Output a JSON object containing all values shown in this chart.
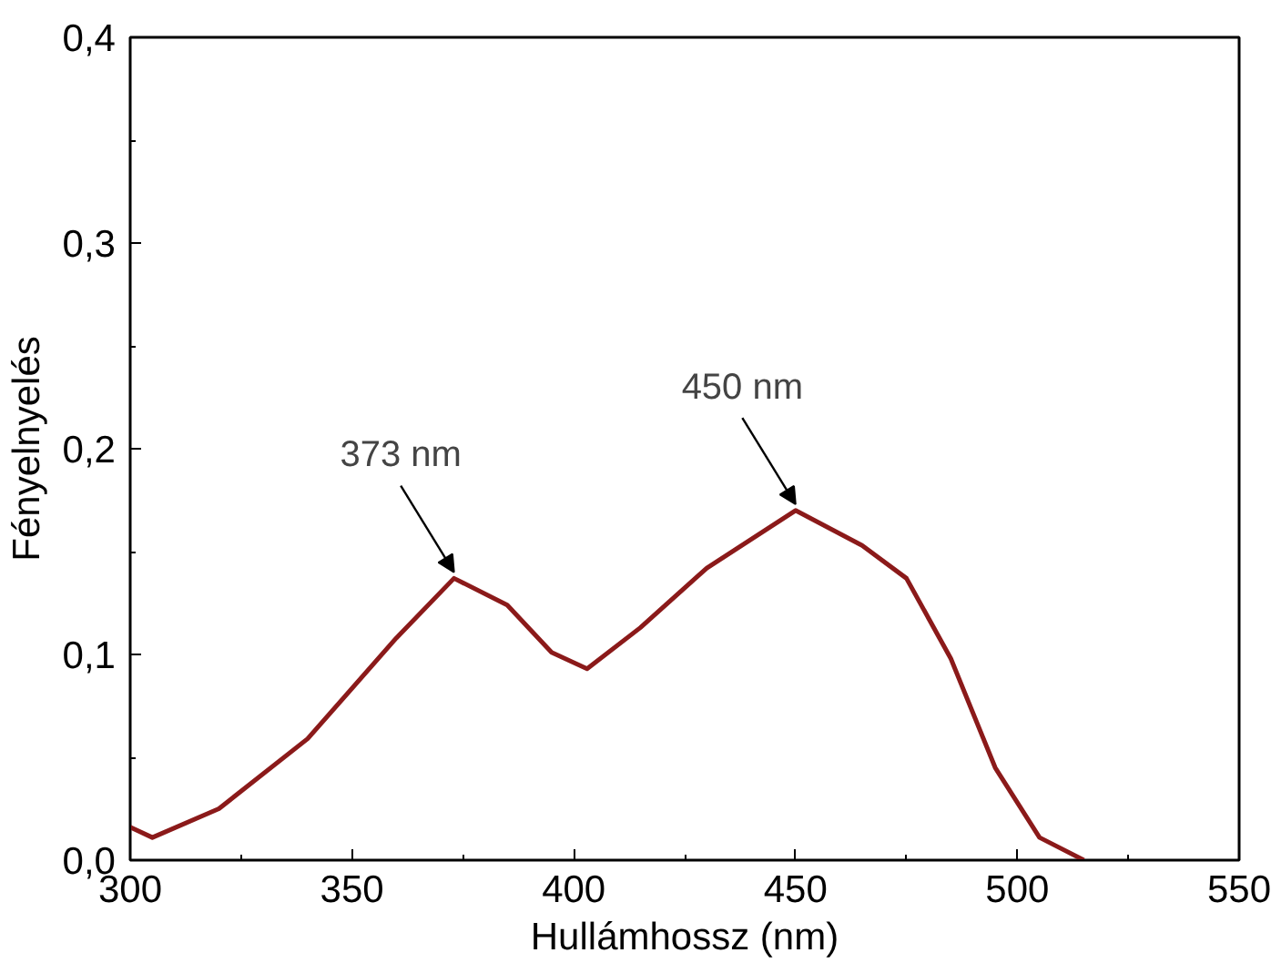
{
  "chart_data": {
    "type": "line",
    "xlabel": "Hullámhossz (nm)",
    "ylabel": "Fényelnyelés",
    "x": [
      300,
      305,
      320,
      340,
      360,
      373,
      385,
      395,
      403,
      415,
      430,
      450,
      465,
      475,
      485,
      495,
      505,
      515
    ],
    "series": [
      {
        "color": "#8b1a1a",
        "values": [
          0.016,
          0.011,
          0.025,
          0.059,
          0.108,
          0.137,
          0.124,
          0.101,
          0.093,
          0.113,
          0.142,
          0.17,
          0.153,
          0.137,
          0.098,
          0.045,
          0.011,
          0.0
        ]
      }
    ],
    "xlim": [
      300,
      550
    ],
    "ylim": [
      0,
      0.4
    ],
    "xticks": [
      300,
      350,
      400,
      450,
      500,
      550
    ],
    "yticks": [
      {
        "value": 0,
        "label": "0,0"
      },
      {
        "value": 0.1,
        "label": "0,1"
      },
      {
        "value": 0.2,
        "label": "0,2"
      },
      {
        "value": 0.3,
        "label": "0,3"
      },
      {
        "value": 0.4,
        "label": "0,4"
      }
    ],
    "annotations": [
      {
        "text": "373 nm",
        "x": 373,
        "y": 0.137
      },
      {
        "text": "450 nm",
        "x": 450,
        "y": 0.17
      }
    ],
    "grid": false,
    "marker": "none",
    "line_style": "solid"
  }
}
